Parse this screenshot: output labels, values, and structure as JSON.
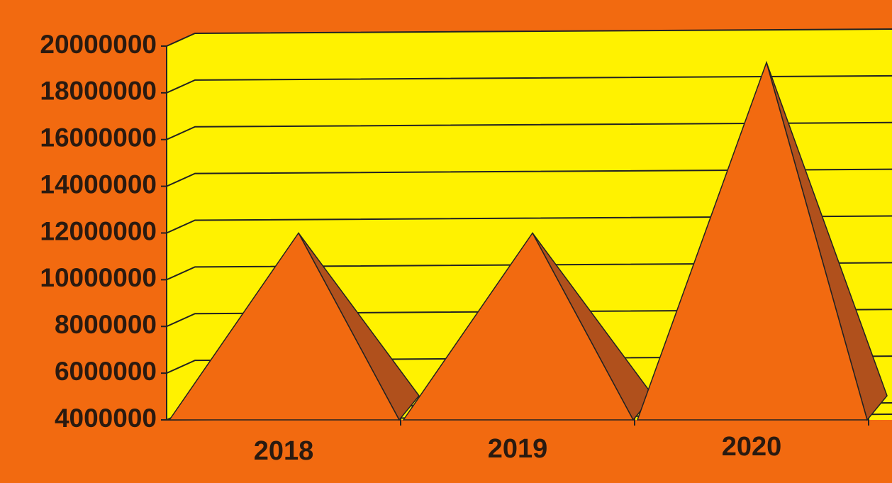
{
  "chart_data": {
    "type": "pyramid",
    "categories": [
      "2018",
      "2019",
      "2020"
    ],
    "values": [
      12000000,
      12000000,
      19300000
    ],
    "color": "#f26a10",
    "ylim": [
      4000000,
      20000000
    ],
    "yticks": [
      4000000,
      6000000,
      8000000,
      10000000,
      12000000,
      14000000,
      16000000,
      18000000,
      20000000
    ],
    "grid": true
  }
}
